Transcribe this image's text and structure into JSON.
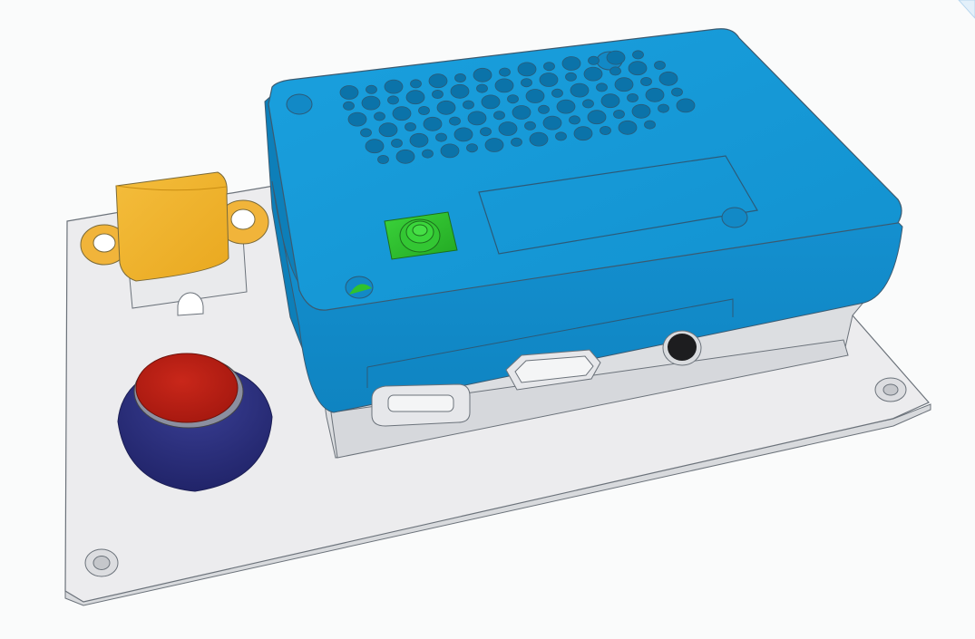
{
  "viewport": {
    "background_color": "#fafbfb",
    "view_cube_icon": "view-cube-icon"
  },
  "model": {
    "colors": {
      "base_plate": "#e8e9ec",
      "base_plate_edge": "#d3d5d9",
      "enclosure_top": "#1597d6",
      "enclosure_side": "#0f86c4",
      "lower_shell": "#dfe1e4",
      "yellow_part": "#f2b22e",
      "red_button_cap": "#b81d12",
      "blue_button_base": "#2b2f7e",
      "green_button": "#2fc22f",
      "outline": "#5e6670"
    }
  }
}
